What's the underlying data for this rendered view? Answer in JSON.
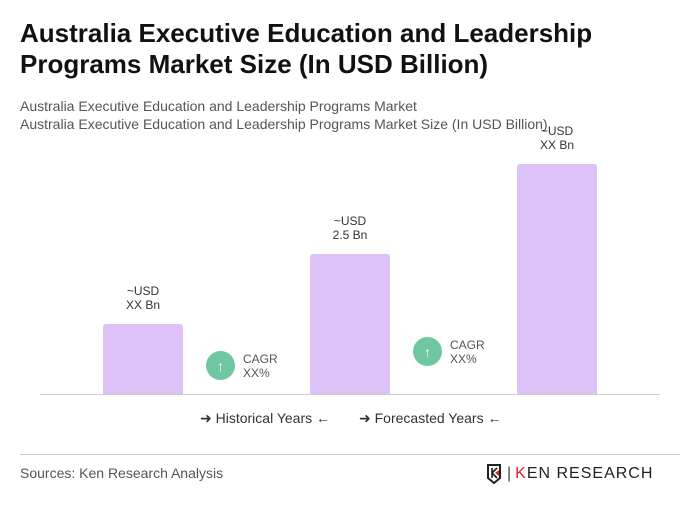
{
  "title": "Australia Executive Education and Leadership Programs Market Size (In USD Billion)",
  "subtitle1": "Australia Executive Education and Leadership Programs Market",
  "subtitle2": "Australia Executive Education and Leadership Programs Market Size (In USD Billion)",
  "chart_data": {
    "type": "bar",
    "categories": [
      "",
      "",
      ""
    ],
    "values": [
      1.25,
      2.5,
      4.1
    ],
    "data_labels": [
      [
        "~USD",
        "XX Bn"
      ],
      [
        "~USD",
        "2.5 Bn"
      ],
      [
        "~USD",
        "XX Bn"
      ]
    ],
    "bar_color": "#dcc2f6",
    "cagr": [
      {
        "label": "CAGR",
        "value": "XX%"
      },
      {
        "label": "CAGR",
        "value": "XX%"
      }
    ],
    "cagr_color": "#6fc7a2",
    "legend": [
      "Historical Years",
      "Forecasted Years"
    ],
    "grid": false
  },
  "footer": {
    "sources": "Sources: Ken Research Analysis",
    "logo": "KEN RESEARCH"
  }
}
